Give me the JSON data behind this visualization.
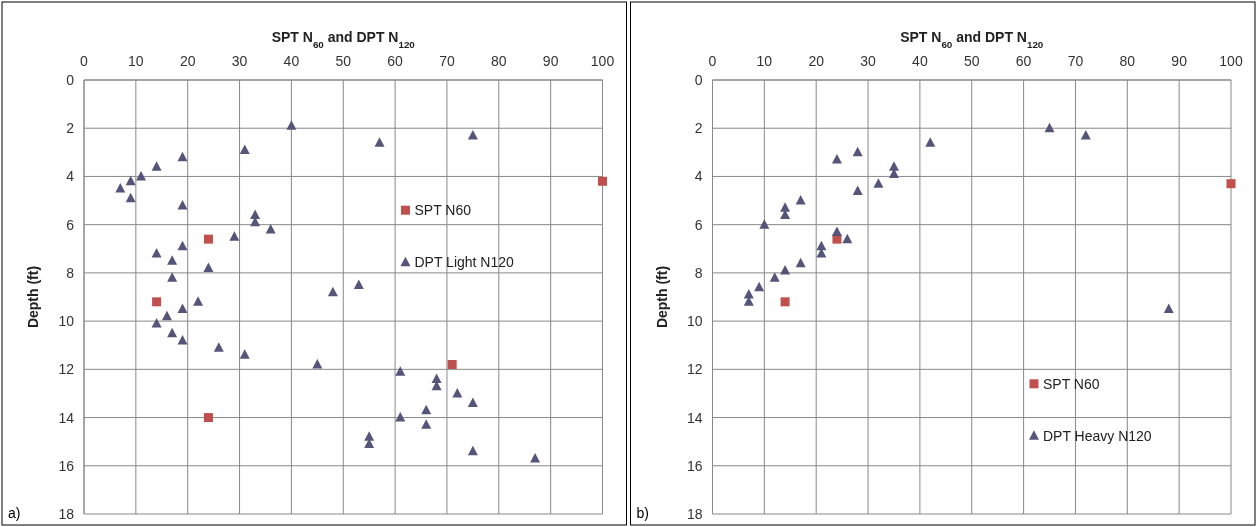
{
  "chart_data": [
    {
      "type": "scatter",
      "xlabel": "SPT N$_{60}$ and DPT N$_{120}$",
      "ylabel": "Depth (ft)",
      "xlim": [
        0,
        100
      ],
      "xticks": [
        0,
        10,
        20,
        30,
        40,
        50,
        60,
        70,
        80,
        90,
        100
      ],
      "ylim": [
        18,
        0
      ],
      "yticks": [
        0,
        2,
        4,
        6,
        8,
        10,
        12,
        14,
        16,
        18
      ],
      "grid": true,
      "legend": "right",
      "annotations": [
        "a)"
      ],
      "series": [
        {
          "name": "SPT N60",
          "color": "#c0504d",
          "marker": "square",
          "x": [
            100,
            24,
            14,
            71,
            24
          ],
          "values": [
            4.2,
            6.6,
            9.2,
            11.8,
            14.0
          ]
        },
        {
          "name": "DPT Light N120",
          "color": "#55557a",
          "marker": "triangle",
          "x": [
            40,
            57,
            75,
            31,
            19,
            14,
            11,
            9,
            7,
            9,
            19,
            33,
            33,
            36,
            29,
            19,
            14,
            17,
            24,
            17,
            53,
            48,
            22,
            19,
            16,
            14,
            17,
            19,
            26,
            31,
            45,
            61,
            68,
            68,
            72,
            75,
            66,
            61,
            66,
            55,
            55,
            75,
            87
          ],
          "values": [
            1.9,
            2.6,
            2.3,
            2.9,
            3.2,
            3.6,
            4.0,
            4.2,
            4.5,
            4.9,
            5.2,
            5.6,
            5.9,
            6.2,
            6.5,
            6.9,
            7.2,
            7.5,
            7.8,
            8.2,
            8.5,
            8.8,
            9.2,
            9.5,
            9.8,
            10.1,
            10.5,
            10.8,
            11.1,
            11.4,
            11.8,
            12.1,
            12.4,
            12.7,
            13.0,
            13.4,
            13.7,
            14.0,
            14.3,
            14.8,
            15.1,
            15.4,
            15.7
          ]
        }
      ]
    },
    {
      "type": "scatter",
      "xlabel": "SPT N$_{60}$ and DPT N$_{120}$",
      "ylabel": "Depth (ft)",
      "xlim": [
        0,
        100
      ],
      "xticks": [
        0,
        10,
        20,
        30,
        40,
        50,
        60,
        70,
        80,
        90,
        100
      ],
      "ylim": [
        18,
        0
      ],
      "yticks": [
        0,
        2,
        4,
        6,
        8,
        10,
        12,
        14,
        16,
        18
      ],
      "grid": true,
      "legend": "bottom right",
      "annotations": [
        "b)"
      ],
      "series": [
        {
          "name": "SPT N60",
          "color": "#c0504d",
          "marker": "square",
          "x": [
            100,
            24,
            14
          ],
          "values": [
            4.3,
            6.6,
            9.2
          ]
        },
        {
          "name": "DPT Heavy N120",
          "color": "#55557a",
          "marker": "triangle",
          "x": [
            65,
            72,
            42,
            28,
            24,
            35,
            35,
            32,
            28,
            17,
            14,
            14,
            10,
            24,
            26,
            21,
            21,
            17,
            14,
            12,
            9,
            7,
            7,
            88
          ],
          "values": [
            2.0,
            2.3,
            2.6,
            3.0,
            3.3,
            3.6,
            3.9,
            4.3,
            4.6,
            5.0,
            5.3,
            5.6,
            6.0,
            6.3,
            6.6,
            6.9,
            7.2,
            7.6,
            7.9,
            8.2,
            8.6,
            8.9,
            9.2,
            9.5
          ]
        }
      ]
    }
  ]
}
